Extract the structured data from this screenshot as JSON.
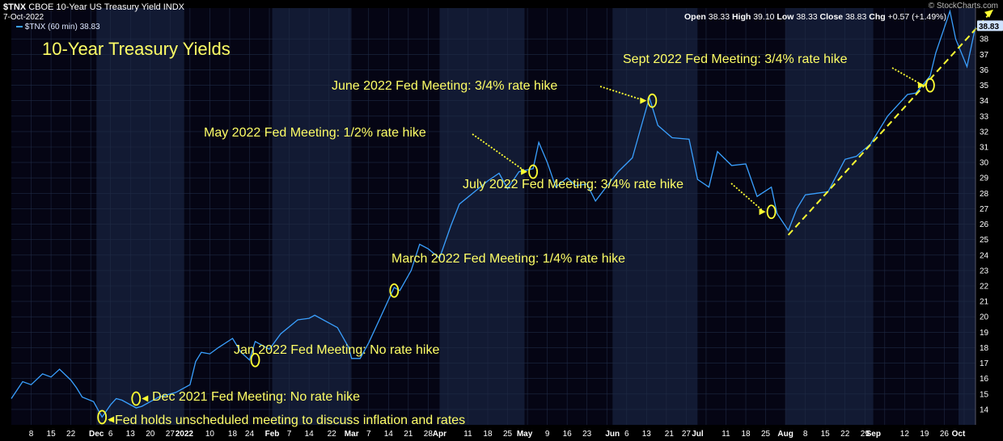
{
  "header": {
    "symbol": "$TNX",
    "description": "CBOE 10-Year US Treasury Yield INDX",
    "date": "7-Oct-2022",
    "legend": "$TNX (60 min) 38.83",
    "open_label": "Open",
    "open": "38.33",
    "high_label": "High",
    "high": "39.10",
    "low_label": "Low",
    "low": "38.33",
    "close_label": "Close",
    "close": "38.83",
    "chg_label": "Chg",
    "chg": "+0.57 (+1.49%)",
    "watermark": "© StockCharts.com"
  },
  "colors": {
    "background": "#000000",
    "band_dark": "#050514",
    "band_light": "#121a33",
    "line": "#3aa0ff",
    "annotation": "#ffff66",
    "last_price_box": "#cfe3ff"
  },
  "chart_data": {
    "type": "line",
    "title": "10-Year Treasury Yields",
    "ylim": [
      13,
      40
    ],
    "y_ticks": [
      14,
      15,
      16,
      17,
      18,
      19,
      20,
      21,
      22,
      23,
      24,
      25,
      26,
      27,
      28,
      29,
      30,
      31,
      32,
      33,
      34,
      35,
      36,
      37,
      38
    ],
    "last_value_label": "38.83",
    "x_ticks": [
      "8",
      "15",
      "22",
      "Dec",
      "6",
      "13",
      "20",
      "27",
      "2022",
      "10",
      "18",
      "24",
      "Feb",
      "7",
      "14",
      "22",
      "Mar",
      "7",
      "14",
      "21",
      "28",
      "Apr",
      "11",
      "18",
      "25",
      "May",
      "9",
      "16",
      "23",
      "Jun",
      "6",
      "13",
      "21",
      "27",
      "Jul",
      "11",
      "18",
      "25",
      "Aug",
      "8",
      "15",
      "22",
      "29",
      "Sep",
      "12",
      "19",
      "26",
      "Oct"
    ],
    "series": [
      {
        "x": [
          "2021-11-01",
          "2021-11-05",
          "2021-11-08",
          "2021-11-12",
          "2021-11-15",
          "2021-11-18",
          "2021-11-22",
          "2021-11-24",
          "2021-11-26",
          "2021-11-30",
          "2021-12-03",
          "2021-12-06",
          "2021-12-08",
          "2021-12-10",
          "2021-12-15",
          "2021-12-17",
          "2021-12-20",
          "2021-12-23",
          "2021-12-29",
          "2022-01-03",
          "2022-01-05",
          "2022-01-07",
          "2022-01-10",
          "2022-01-13",
          "2022-01-18",
          "2022-01-21",
          "2022-01-24",
          "2022-01-26",
          "2022-01-31",
          "2022-02-04",
          "2022-02-10",
          "2022-02-14",
          "2022-02-16",
          "2022-02-24",
          "2022-02-28",
          "2022-03-01",
          "2022-03-04",
          "2022-03-07",
          "2022-03-11",
          "2022-03-16",
          "2022-03-18",
          "2022-03-22",
          "2022-03-25",
          "2022-03-28",
          "2022-04-01",
          "2022-04-05",
          "2022-04-08",
          "2022-04-12",
          "2022-04-18",
          "2022-04-22",
          "2022-04-25",
          "2022-04-29",
          "2022-05-04",
          "2022-05-06",
          "2022-05-09",
          "2022-05-12",
          "2022-05-16",
          "2022-05-19",
          "2022-05-23",
          "2022-05-26",
          "2022-05-31",
          "2022-06-03",
          "2022-06-08",
          "2022-06-10",
          "2022-06-14",
          "2022-06-17",
          "2022-06-22",
          "2022-06-28",
          "2022-07-01",
          "2022-07-05",
          "2022-07-08",
          "2022-07-13",
          "2022-07-18",
          "2022-07-22",
          "2022-07-27",
          "2022-07-29",
          "2022-08-02",
          "2022-08-05",
          "2022-08-08",
          "2022-08-12",
          "2022-08-16",
          "2022-08-22",
          "2022-08-26",
          "2022-08-31",
          "2022-09-06",
          "2022-09-13",
          "2022-09-16",
          "2022-09-21",
          "2022-09-23",
          "2022-09-28",
          "2022-09-30",
          "2022-10-04",
          "2022-10-07"
        ],
        "y": [
          14.7,
          15.8,
          15.6,
          16.3,
          16.1,
          16.6,
          15.9,
          15.4,
          14.8,
          14.5,
          13.5,
          14.3,
          14.7,
          14.6,
          14.1,
          14.2,
          14.5,
          14.8,
          15.1,
          15.6,
          17.1,
          17.7,
          17.6,
          18.0,
          18.6,
          17.7,
          17.2,
          18.4,
          17.9,
          18.9,
          19.8,
          19.9,
          20.1,
          19.3,
          18.0,
          17.3,
          17.3,
          18.3,
          19.9,
          21.9,
          21.7,
          23.0,
          24.7,
          24.4,
          23.8,
          25.9,
          27.3,
          27.9,
          28.8,
          29.3,
          28.3,
          29.4,
          29.6,
          31.3,
          30.0,
          28.4,
          29.0,
          28.5,
          28.6,
          27.5,
          28.7,
          29.4,
          30.3,
          31.6,
          34.2,
          32.4,
          31.6,
          31.5,
          28.9,
          28.4,
          30.7,
          29.8,
          29.9,
          27.8,
          28.4,
          26.7,
          25.6,
          27.0,
          27.9,
          28.0,
          28.1,
          30.2,
          30.4,
          31.2,
          33.0,
          34.4,
          34.5,
          35.6,
          37.1,
          39.8,
          38.0,
          36.2,
          38.8
        ]
      }
    ]
  },
  "annotations": [
    {
      "text": "Fed holds unscheduled meeting to discuss inflation and rates",
      "date": "2021-12-03",
      "value": 13.5
    },
    {
      "text": "Dec 2021 Fed Meeting: No rate hike",
      "date": "2021-12-15",
      "value": 14.7
    },
    {
      "text": "Jan 2022 Fed Meeting: No rate hike",
      "date": "2022-01-26",
      "value": 17.2
    },
    {
      "text": "March 2022 Fed Meeting: 1/4% rate hike",
      "date": "2022-03-16",
      "value": 21.7
    },
    {
      "text": "May 2022 Fed Meeting: 1/2% rate hike",
      "date": "2022-05-04",
      "value": 29.4
    },
    {
      "text": "June 2022 Fed Meeting: 3/4% rate hike",
      "date": "2022-06-15",
      "value": 34.0
    },
    {
      "text": "July 2022 Fed Meeting: 3/4% rate hike",
      "date": "2022-07-27",
      "value": 26.8
    },
    {
      "text": "Sept 2022 Fed Meeting: 3/4% rate hike",
      "date": "2022-09-21",
      "value": 35.0
    }
  ]
}
